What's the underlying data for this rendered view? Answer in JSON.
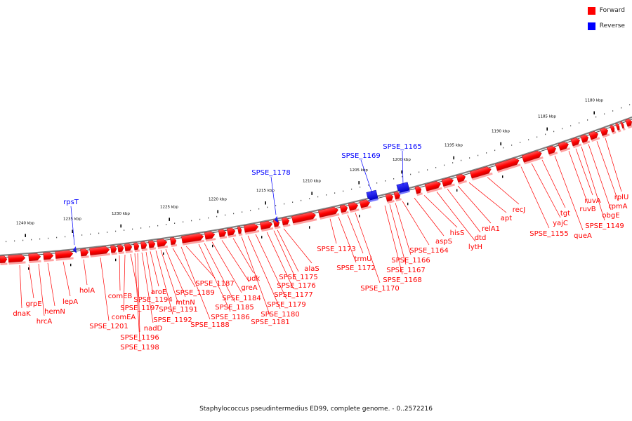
{
  "legend": {
    "entries": [
      {
        "label": "Forward",
        "color": "#ff0000"
      },
      {
        "label": "Reverse",
        "color": "#0000ff"
      }
    ]
  },
  "caption": "Staphylococcus pseudintermedius ED99, complete genome. - 0..2572216",
  "colors": {
    "forward": "#ff0000",
    "reverse": "#0000ff",
    "backbone": "#808080",
    "tick": "#000000"
  },
  "axis": {
    "ticks": [
      "1240 kbp",
      "1235 kbp",
      "1230 kbp",
      "1225 kbp",
      "1220 kbp",
      "1215 kbp",
      "1210 kbp",
      "1205 kbp",
      "1200 kbp",
      "1195 kbp",
      "1190 kbp",
      "1185 kbp",
      "1180 kbp"
    ]
  },
  "genes": {
    "forward_labels": [
      "dnaK",
      "grpE",
      "hrcA",
      "hemN",
      "lepA",
      "holA",
      "SPSE_1201",
      "comEB",
      "comEA",
      "SPSE_1197",
      "SPSE_1198",
      "SPSE_1196",
      "nadD",
      "SPSE_1194",
      "aroE",
      "SPSE_1192",
      "SPSE_1191",
      "mtnN",
      "SPSE_1189",
      "SPSE_1188",
      "SPSE_1187",
      "SPSE_1186",
      "SPSE_1185",
      "SPSE_1184",
      "greA",
      "udk",
      "SPSE_1181",
      "SPSE_1180",
      "SPSE_1179",
      "SPSE_1177",
      "SPSE_1176",
      "SPSE_1175",
      "alaS",
      "SPSE_1173",
      "SPSE_1172",
      "trmU",
      "SPSE_1170",
      "SPSE_1168",
      "SPSE_1167",
      "SPSE_1166",
      "SPSE_1164",
      "aspS",
      "hisS",
      "lytH",
      "dtd",
      "relA1",
      "apt",
      "recJ",
      "SPSE_1155",
      "yajC",
      "tgt",
      "queA",
      "ruvB",
      "ruvA",
      "SPSE_1149",
      "obgE",
      "rpmA",
      "rplU"
    ],
    "reverse_labels": [
      "rpsT",
      "SPSE_1178",
      "SPSE_1169",
      "SPSE_1165"
    ]
  }
}
